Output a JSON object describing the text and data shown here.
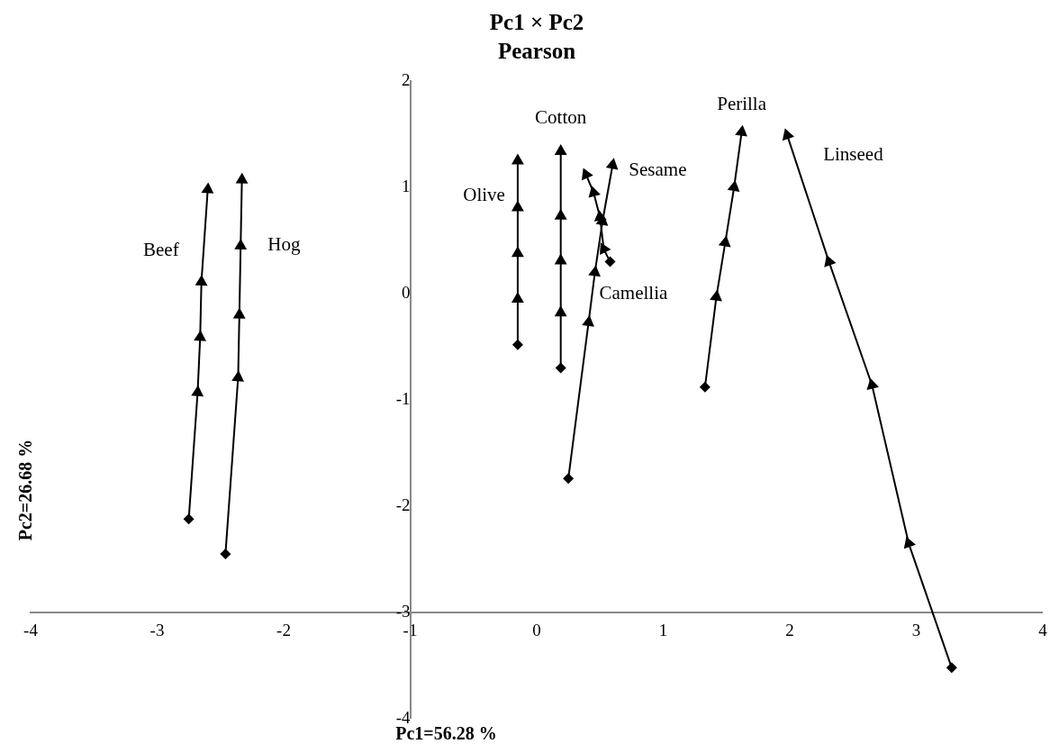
{
  "chart_data": {
    "type": "line",
    "title": "Pc1 × Pc2",
    "subtitle": "Pearson",
    "xlabel": "Pc1=56.28 %",
    "ylabel": "Pc2=26.68 %",
    "marker": "diamond",
    "grid": false,
    "legend": false,
    "xlim": [
      -4,
      4
    ],
    "ylim": [
      -4,
      2
    ],
    "xticks": [
      -4,
      -3,
      -2,
      -1,
      0,
      1,
      2,
      3,
      4
    ],
    "yticks": [
      -4,
      -3,
      -2,
      -1,
      0,
      1,
      2
    ],
    "series": [
      {
        "name": "Beef",
        "color": "#000000",
        "x": [
          -2.75,
          -2.68,
          -2.66,
          -2.65,
          -2.6
        ],
        "values": [
          -2.12,
          -0.93,
          -0.41,
          0.11,
          0.98
        ]
      },
      {
        "name": "Hog",
        "color": "#000000",
        "x": [
          -2.46,
          -2.36,
          -2.35,
          -2.34,
          -2.33
        ],
        "values": [
          -2.45,
          -0.79,
          -0.2,
          0.45,
          1.07
        ]
      },
      {
        "name": "Olive",
        "color": "#000000",
        "x": [
          -0.15,
          -0.15,
          -0.15,
          -0.15,
          -0.15
        ],
        "values": [
          -0.48,
          -0.05,
          0.38,
          0.81,
          1.25
        ]
      },
      {
        "name": "Cotton",
        "color": "#000000",
        "x": [
          0.19,
          0.19,
          0.19,
          0.19,
          0.19
        ],
        "values": [
          -0.7,
          -0.18,
          0.31,
          0.73,
          1.34
        ]
      },
      {
        "name": "Sesame",
        "color": "#000000",
        "x": [
          0.25,
          0.41,
          0.46,
          0.52,
          0.6
        ],
        "values": [
          -1.74,
          -0.27,
          0.2,
          0.68,
          1.21
        ]
      },
      {
        "name": "Camellia",
        "color": "#000000",
        "x": [
          0.58,
          0.53,
          0.5,
          0.45,
          0.39
        ],
        "values": [
          0.3,
          0.42,
          0.72,
          0.95,
          1.12
        ]
      },
      {
        "name": "Perilla",
        "color": "#000000",
        "x": [
          1.33,
          1.42,
          1.49,
          1.56,
          1.62
        ],
        "values": [
          -0.88,
          -0.03,
          0.48,
          1.0,
          1.52
        ]
      },
      {
        "name": "Linseed",
        "color": "#000000",
        "x": [
          3.28,
          2.94,
          2.65,
          2.31,
          1.98
        ],
        "values": [
          -3.52,
          -2.35,
          -0.86,
          0.3,
          1.49
        ]
      }
    ]
  }
}
